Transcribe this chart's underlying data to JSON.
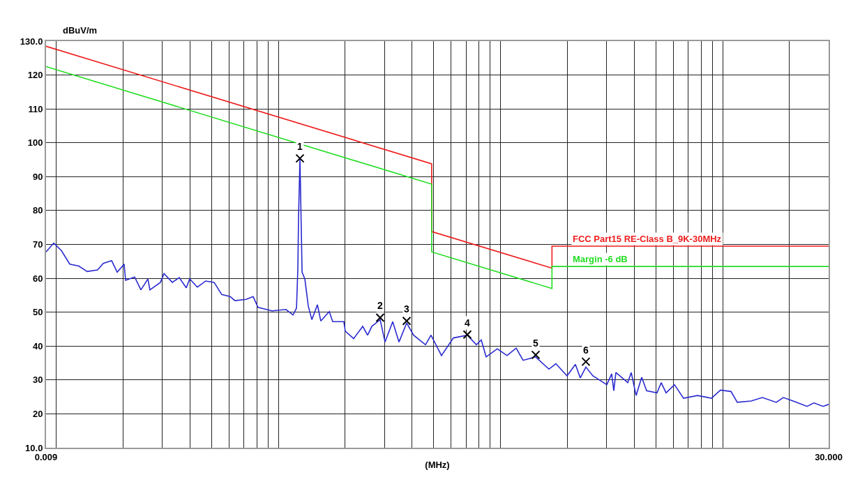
{
  "chart_data": {
    "type": "line",
    "xlabel": "(MHz)",
    "ylabel": "dBuV/m",
    "log": "x",
    "grid": true,
    "legend": false,
    "xlim": [
      0.009,
      30
    ],
    "xticks": [
      {
        "value": 0.009,
        "label": "0.009"
      },
      {
        "value": 0.01,
        "label": null
      },
      {
        "value": 0.02,
        "label": null
      },
      {
        "value": 0.03,
        "label": null
      },
      {
        "value": 0.04,
        "label": null
      },
      {
        "value": 0.05,
        "label": null
      },
      {
        "value": 0.06,
        "label": null
      },
      {
        "value": 0.07,
        "label": null
      },
      {
        "value": 0.08,
        "label": null
      },
      {
        "value": 0.09,
        "label": null
      },
      {
        "value": 0.1,
        "label": null
      },
      {
        "value": 0.2,
        "label": null
      },
      {
        "value": 0.3,
        "label": null
      },
      {
        "value": 0.4,
        "label": null
      },
      {
        "value": 0.5,
        "label": null
      },
      {
        "value": 0.6,
        "label": null
      },
      {
        "value": 0.7,
        "label": null
      },
      {
        "value": 0.8,
        "label": null
      },
      {
        "value": 0.9,
        "label": null
      },
      {
        "value": 1,
        "label": null
      },
      {
        "value": 2,
        "label": null
      },
      {
        "value": 3,
        "label": null
      },
      {
        "value": 4,
        "label": null
      },
      {
        "value": 5,
        "label": null
      },
      {
        "value": 6,
        "label": null
      },
      {
        "value": 7,
        "label": null
      },
      {
        "value": 8,
        "label": null
      },
      {
        "value": 9,
        "label": null
      },
      {
        "value": 10,
        "label": null
      },
      {
        "value": 20,
        "label": null
      },
      {
        "value": 30,
        "label": "30.000"
      }
    ],
    "ylim": [
      10,
      130
    ],
    "yticks": [
      {
        "value": 10,
        "label": "10.0"
      },
      20,
      30,
      40,
      50,
      60,
      70,
      80,
      90,
      100,
      110,
      120,
      {
        "value": 130,
        "label": "130.0"
      }
    ],
    "series": [
      {
        "name": "FCC Part15 RE-Class B_9K-30MHz",
        "color": "#ee1c1c",
        "x": [
          0.009,
          0.49,
          0.49,
          1.705,
          1.705,
          30
        ],
        "values": [
          128.5,
          93.8,
          73.8,
          63.0,
          69.5,
          69.5
        ]
      },
      {
        "name": "Margin -6 dB",
        "color": "#22dd22",
        "x": [
          0.009,
          0.49,
          0.49,
          1.705,
          1.705,
          30
        ],
        "values": [
          122.5,
          87.8,
          67.8,
          57.0,
          63.5,
          63.5
        ]
      },
      {
        "color": "#2a2ad0",
        "x": [
          0.009,
          0.00975,
          0.01055,
          0.01151,
          0.01264,
          0.01379,
          0.01537,
          0.01628,
          0.01776,
          0.01882,
          0.02022,
          0.02052,
          0.02254,
          0.02406,
          0.02586,
          0.02642,
          0.02946,
          0.03055,
          0.03331,
          0.0358,
          0.0385,
          0.0399,
          0.0432,
          0.0471,
          0.0514,
          0.0556,
          0.0607,
          0.0638,
          0.0717,
          0.077,
          0.081,
          0.0937,
          0.1082,
          0.1164,
          0.1207,
          0.1224,
          0.1233,
          0.1251,
          0.1279,
          0.1316,
          0.1364,
          0.1415,
          0.1499,
          0.1553,
          0.1695,
          0.1757,
          0.1972,
          0.2001,
          0.2183,
          0.2398,
          0.2523,
          0.2633,
          0.2872,
          0.3021,
          0.3272,
          0.3492,
          0.3781,
          0.4063,
          0.4595,
          0.4867,
          0.5425,
          0.6136,
          0.709,
          0.7788,
          0.8193,
          0.8619,
          0.9675,
          1.07,
          1.176,
          1.264,
          1.44,
          1.652,
          1.776,
          1.993,
          2.174,
          2.287,
          2.423,
          2.605,
          3.01,
          3.166,
          3.236,
          3.307,
          3.74,
          3.876,
          4.078,
          4.321,
          4.546,
          5.065,
          5.289,
          5.564,
          6.071,
          6.668,
          7.704,
          8.903,
          9.78,
          10.9,
          11.64,
          13.45,
          15.09,
          17.44,
          18.75,
          20.75,
          23.98,
          25.77,
          28.31,
          30
        ],
        "values": [
          67.8,
          70.4,
          68.2,
          64.2,
          63.6,
          62,
          62.5,
          64.4,
          65.2,
          61.8,
          64.2,
          59.4,
          60.4,
          56.6,
          59.8,
          56.6,
          58.8,
          61.4,
          58.8,
          60.2,
          57.2,
          59.8,
          57.4,
          59.2,
          58.8,
          55.2,
          54.6,
          53.4,
          53.8,
          54.6,
          51.4,
          50.4,
          50.8,
          49.2,
          51.2,
          62.8,
          78,
          95.4,
          61.8,
          59.8,
          51.8,
          47.8,
          52.2,
          47.4,
          50.2,
          47.2,
          47.2,
          44.4,
          42.2,
          45.8,
          43.2,
          45.8,
          47.8,
          41.2,
          47.2,
          41.2,
          46.8,
          43.2,
          40.4,
          43.2,
          37.2,
          42.4,
          43.2,
          40.4,
          41.8,
          36.8,
          39.2,
          37.2,
          39.4,
          35.8,
          36.8,
          33.2,
          34.8,
          31.2,
          34.6,
          30.6,
          33.8,
          31.2,
          28.6,
          31.8,
          26.8,
          32.2,
          29.2,
          32.2,
          25.4,
          30.8,
          26.8,
          26.2,
          29.2,
          26.2,
          28.6,
          24.6,
          25.4,
          24.6,
          27,
          26.6,
          23.4,
          23.8,
          24.8,
          23.4,
          24.8,
          23.8,
          22.2,
          23.2,
          22.2,
          22.8
        ]
      },
      {
        "type": "scatter",
        "color": "#000000",
        "marker": "cross",
        "x": [
          0.1251,
          0.2872,
          0.3781,
          0.709,
          1.44,
          2.423
        ],
        "values": [
          95.4,
          48.4,
          47.4,
          43.4,
          37.4,
          35.4
        ]
      }
    ],
    "annotations": [
      {
        "text": "1",
        "x": 0.1251,
        "y": 95.4
      },
      {
        "text": "2",
        "x": 0.2872,
        "y": 48.4
      },
      {
        "text": "3",
        "x": 0.3781,
        "y": 47.4
      },
      {
        "text": "4",
        "x": 0.709,
        "y": 43.4
      },
      {
        "text": "5",
        "x": 1.44,
        "y": 37.4
      },
      {
        "text": "6",
        "x": 2.423,
        "y": 35.4
      }
    ]
  }
}
